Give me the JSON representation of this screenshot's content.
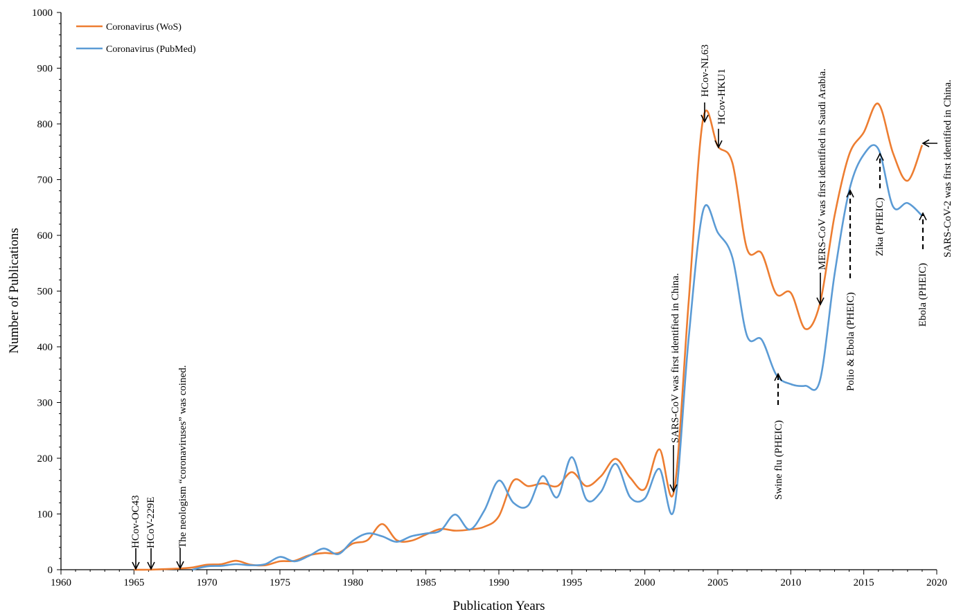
{
  "chart_data": {
    "type": "line",
    "title": "",
    "xlabel": "Publication  Years",
    "ylabel": "Number  of Publications",
    "xlim": [
      1960,
      2020
    ],
    "ylim": [
      0,
      1000
    ],
    "x_ticks": [
      "1960",
      "1965",
      "1970",
      "1975",
      "1980",
      "1985",
      "1990",
      "1995",
      "2000",
      "2005",
      "2010",
      "2015",
      "2020"
    ],
    "y_ticks": [
      "0",
      "100",
      "200",
      "300",
      "400",
      "500",
      "600",
      "700",
      "800",
      "900",
      "1000"
    ],
    "grid": false,
    "legend_position": "top-left",
    "series": [
      {
        "name": "Coronavirus (WoS)",
        "color": "#ED7D31",
        "points": [
          [
            1965,
            0
          ],
          [
            1966,
            0
          ],
          [
            1967,
            1
          ],
          [
            1968,
            2
          ],
          [
            1969,
            4
          ],
          [
            1970,
            9
          ],
          [
            1971,
            10
          ],
          [
            1972,
            16
          ],
          [
            1973,
            9
          ],
          [
            1974,
            8
          ],
          [
            1975,
            15
          ],
          [
            1976,
            16
          ],
          [
            1977,
            26
          ],
          [
            1978,
            30
          ],
          [
            1979,
            30
          ],
          [
            1980,
            47
          ],
          [
            1981,
            53
          ],
          [
            1982,
            82
          ],
          [
            1983,
            53
          ],
          [
            1984,
            52
          ],
          [
            1985,
            63
          ],
          [
            1986,
            73
          ],
          [
            1987,
            70
          ],
          [
            1988,
            72
          ],
          [
            1989,
            77
          ],
          [
            1990,
            96
          ],
          [
            1991,
            160
          ],
          [
            1992,
            150
          ],
          [
            1993,
            155
          ],
          [
            1994,
            150
          ],
          [
            1995,
            175
          ],
          [
            1996,
            150
          ],
          [
            1997,
            168
          ],
          [
            1998,
            199
          ],
          [
            1999,
            165
          ],
          [
            2000,
            145
          ],
          [
            2001,
            216
          ],
          [
            2002,
            141
          ],
          [
            2003,
            480
          ],
          [
            2004,
            810
          ],
          [
            2005,
            760
          ],
          [
            2006,
            730
          ],
          [
            2007,
            576
          ],
          [
            2008,
            568
          ],
          [
            2009,
            495
          ],
          [
            2010,
            497
          ],
          [
            2011,
            432
          ],
          [
            2012,
            478
          ],
          [
            2013,
            635
          ],
          [
            2014,
            745
          ],
          [
            2015,
            785
          ],
          [
            2016,
            836
          ],
          [
            2017,
            748
          ],
          [
            2018,
            698
          ],
          [
            2019,
            762
          ]
        ]
      },
      {
        "name": "Coronavirus (PubMed)",
        "color": "#5B9BD5",
        "points": [
          [
            1969,
            0
          ],
          [
            1970,
            6
          ],
          [
            1971,
            7
          ],
          [
            1972,
            10
          ],
          [
            1973,
            8
          ],
          [
            1974,
            10
          ],
          [
            1975,
            23
          ],
          [
            1976,
            15
          ],
          [
            1977,
            25
          ],
          [
            1978,
            38
          ],
          [
            1979,
            28
          ],
          [
            1980,
            52
          ],
          [
            1981,
            65
          ],
          [
            1982,
            60
          ],
          [
            1983,
            50
          ],
          [
            1984,
            60
          ],
          [
            1985,
            65
          ],
          [
            1986,
            70
          ],
          [
            1987,
            99
          ],
          [
            1988,
            72
          ],
          [
            1989,
            106
          ],
          [
            1990,
            160
          ],
          [
            1991,
            120
          ],
          [
            1992,
            115
          ],
          [
            1993,
            168
          ],
          [
            1994,
            130
          ],
          [
            1995,
            202
          ],
          [
            1996,
            126
          ],
          [
            1997,
            140
          ],
          [
            1998,
            190
          ],
          [
            1999,
            130
          ],
          [
            2000,
            128
          ],
          [
            2001,
            181
          ],
          [
            2002,
            108
          ],
          [
            2003,
            415
          ],
          [
            2004,
            645
          ],
          [
            2005,
            605
          ],
          [
            2006,
            560
          ],
          [
            2007,
            420
          ],
          [
            2008,
            413
          ],
          [
            2009,
            350
          ],
          [
            2010,
            333
          ],
          [
            2011,
            330
          ],
          [
            2012,
            340
          ],
          [
            2013,
            530
          ],
          [
            2014,
            680
          ],
          [
            2015,
            745
          ],
          [
            2016,
            755
          ],
          [
            2017,
            652
          ],
          [
            2018,
            658
          ],
          [
            2019,
            635
          ]
        ]
      }
    ],
    "annotations": [
      {
        "text": "HCov-OC43",
        "year": 1965,
        "value": 0,
        "style": "solid"
      },
      {
        "text": "HCoV-229E",
        "year": 1966,
        "value": 0,
        "style": "solid"
      },
      {
        "text": "The neologism “coronaviruses” was coined.",
        "year": 1968,
        "value": 2,
        "style": "solid"
      },
      {
        "text": "SARS-CoV  was  first  identified  in China.",
        "year": 2002,
        "value": 141,
        "style": "solid"
      },
      {
        "text": "HCov-NL63",
        "year": 2004,
        "value": 810,
        "style": "solid"
      },
      {
        "text": "HCov-HKU1",
        "year": 2005,
        "value": 760,
        "style": "solid"
      },
      {
        "text": "Swine flu (PHEIC)",
        "year": 2009,
        "value": 350,
        "style": "dashed"
      },
      {
        "text": "MERS-CoV   was  first  identified  in  Saudi  Arabia.",
        "year": 2012,
        "value": 478,
        "style": "solid"
      },
      {
        "text": "Polio & Ebola (PHEIC)",
        "year": 2014,
        "value": 680,
        "style": "dashed"
      },
      {
        "text": "Zika (PHEIC)",
        "year": 2016,
        "value": 755,
        "style": "dashed"
      },
      {
        "text": "Ebola (PHEIC)",
        "year": 2019,
        "value": 635,
        "style": "dashed"
      },
      {
        "text": "SARS-CoV-2   was  first  identified   in  China.",
        "year": 2019,
        "value": 762,
        "style": "solid"
      }
    ]
  }
}
